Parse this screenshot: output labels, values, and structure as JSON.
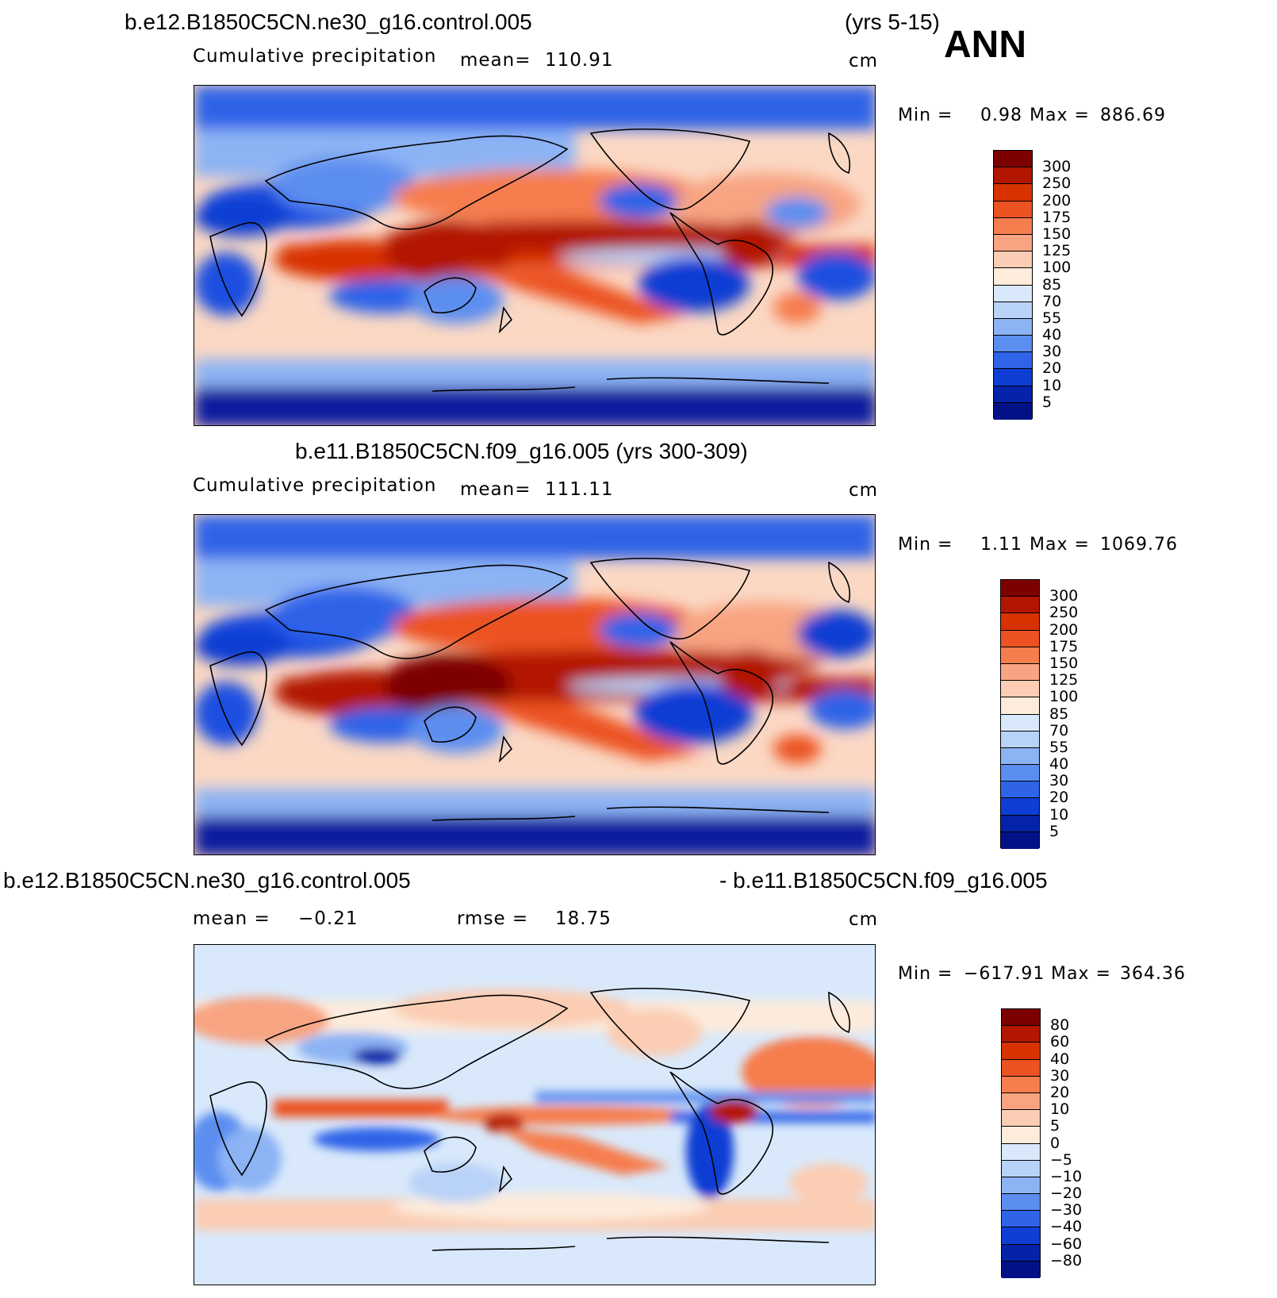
{
  "panels": [
    {
      "title": "b.e12.B1850C5CN.ne30_g16.control.005",
      "years": "(yrs 5-15)",
      "season": "ANN",
      "variable": "Cumulative precipitation",
      "mean_label": "mean=",
      "mean_value": "110.91",
      "units": "cm",
      "min_label": "Min =",
      "min_value": "0.98",
      "max_label": "Max =",
      "max_value": "886.69",
      "legend_levels": [
        "300",
        "250",
        "200",
        "175",
        "150",
        "125",
        "100",
        "85",
        "70",
        "55",
        "40",
        "30",
        "20",
        "10",
        "5"
      ]
    },
    {
      "title": "b.e11.B1850C5CN.f09_g16.005 (yrs 300-309)",
      "variable": "Cumulative precipitation",
      "mean_label": "mean=",
      "mean_value": "111.11",
      "units": "cm",
      "min_label": "Min =",
      "min_value": "1.11",
      "max_label": "Max =",
      "max_value": "1069.76",
      "legend_levels": [
        "300",
        "250",
        "200",
        "175",
        "150",
        "125",
        "100",
        "85",
        "70",
        "55",
        "40",
        "30",
        "20",
        "10",
        "5"
      ]
    },
    {
      "title_left": "b.e12.B1850C5CN.ne30_g16.control.005",
      "title_right": "- b.e11.B1850C5CN.f09_g16.005",
      "mean_label": "mean =",
      "mean_value": "−0.21",
      "rmse_label": "rmse =",
      "rmse_value": "18.75",
      "units": "cm",
      "min_label": "Min =",
      "min_value": "−617.91",
      "max_label": "Max =",
      "max_value": "364.36",
      "legend_levels": [
        "80",
        "60",
        "40",
        "30",
        "20",
        "10",
        "5",
        "0",
        "−5",
        "−10",
        "−20",
        "−30",
        "−40",
        "−60",
        "−80"
      ]
    }
  ],
  "colors": {
    "precip_colorbar": [
      "#7d0000",
      "#b21500",
      "#d83200",
      "#ec5222",
      "#f67d4d",
      "#f8a482",
      "#fbcdb4",
      "#fdebdb",
      "#d9e9fb",
      "#b9d2f8",
      "#8cb3f4",
      "#5b8ef0",
      "#2f63e8",
      "#0e3ed3",
      "#0423a8",
      "#021286"
    ],
    "diff_colorbar": [
      "#7d0000",
      "#b21500",
      "#d83200",
      "#ec5222",
      "#f67d4d",
      "#f8a482",
      "#fbcdb4",
      "#fdebdb",
      "#d9e9fb",
      "#b9d2f8",
      "#8cb3f4",
      "#5b8ef0",
      "#2f63e8",
      "#0e3ed3",
      "#0423a8",
      "#021286"
    ]
  },
  "chart_data": [
    {
      "type": "heatmap",
      "title": "b.e12.B1850C5CN.ne30_g16.control.005",
      "subtitle": "Cumulative precipitation",
      "units": "cm",
      "mean": 110.91,
      "min": 0.98,
      "max": 886.69,
      "levels": [
        5,
        10,
        20,
        30,
        40,
        55,
        70,
        85,
        100,
        125,
        150,
        175,
        200,
        250,
        300
      ]
    },
    {
      "type": "heatmap",
      "title": "b.e11.B1850C5CN.f09_g16.005 (yrs 300-309)",
      "subtitle": "Cumulative precipitation",
      "units": "cm",
      "mean": 111.11,
      "min": 1.11,
      "max": 1069.76,
      "levels": [
        5,
        10,
        20,
        30,
        40,
        55,
        70,
        85,
        100,
        125,
        150,
        175,
        200,
        250,
        300
      ]
    },
    {
      "type": "heatmap",
      "title": "b.e12.B1850C5CN.ne30_g16.control.005 - b.e11.B1850C5CN.f09_g16.005",
      "units": "cm",
      "mean": -0.21,
      "rmse": 18.75,
      "min": -617.91,
      "max": 364.36,
      "levels": [
        -80,
        -60,
        -40,
        -30,
        -20,
        -10,
        -5,
        0,
        5,
        10,
        20,
        30,
        40,
        60,
        80
      ]
    }
  ]
}
